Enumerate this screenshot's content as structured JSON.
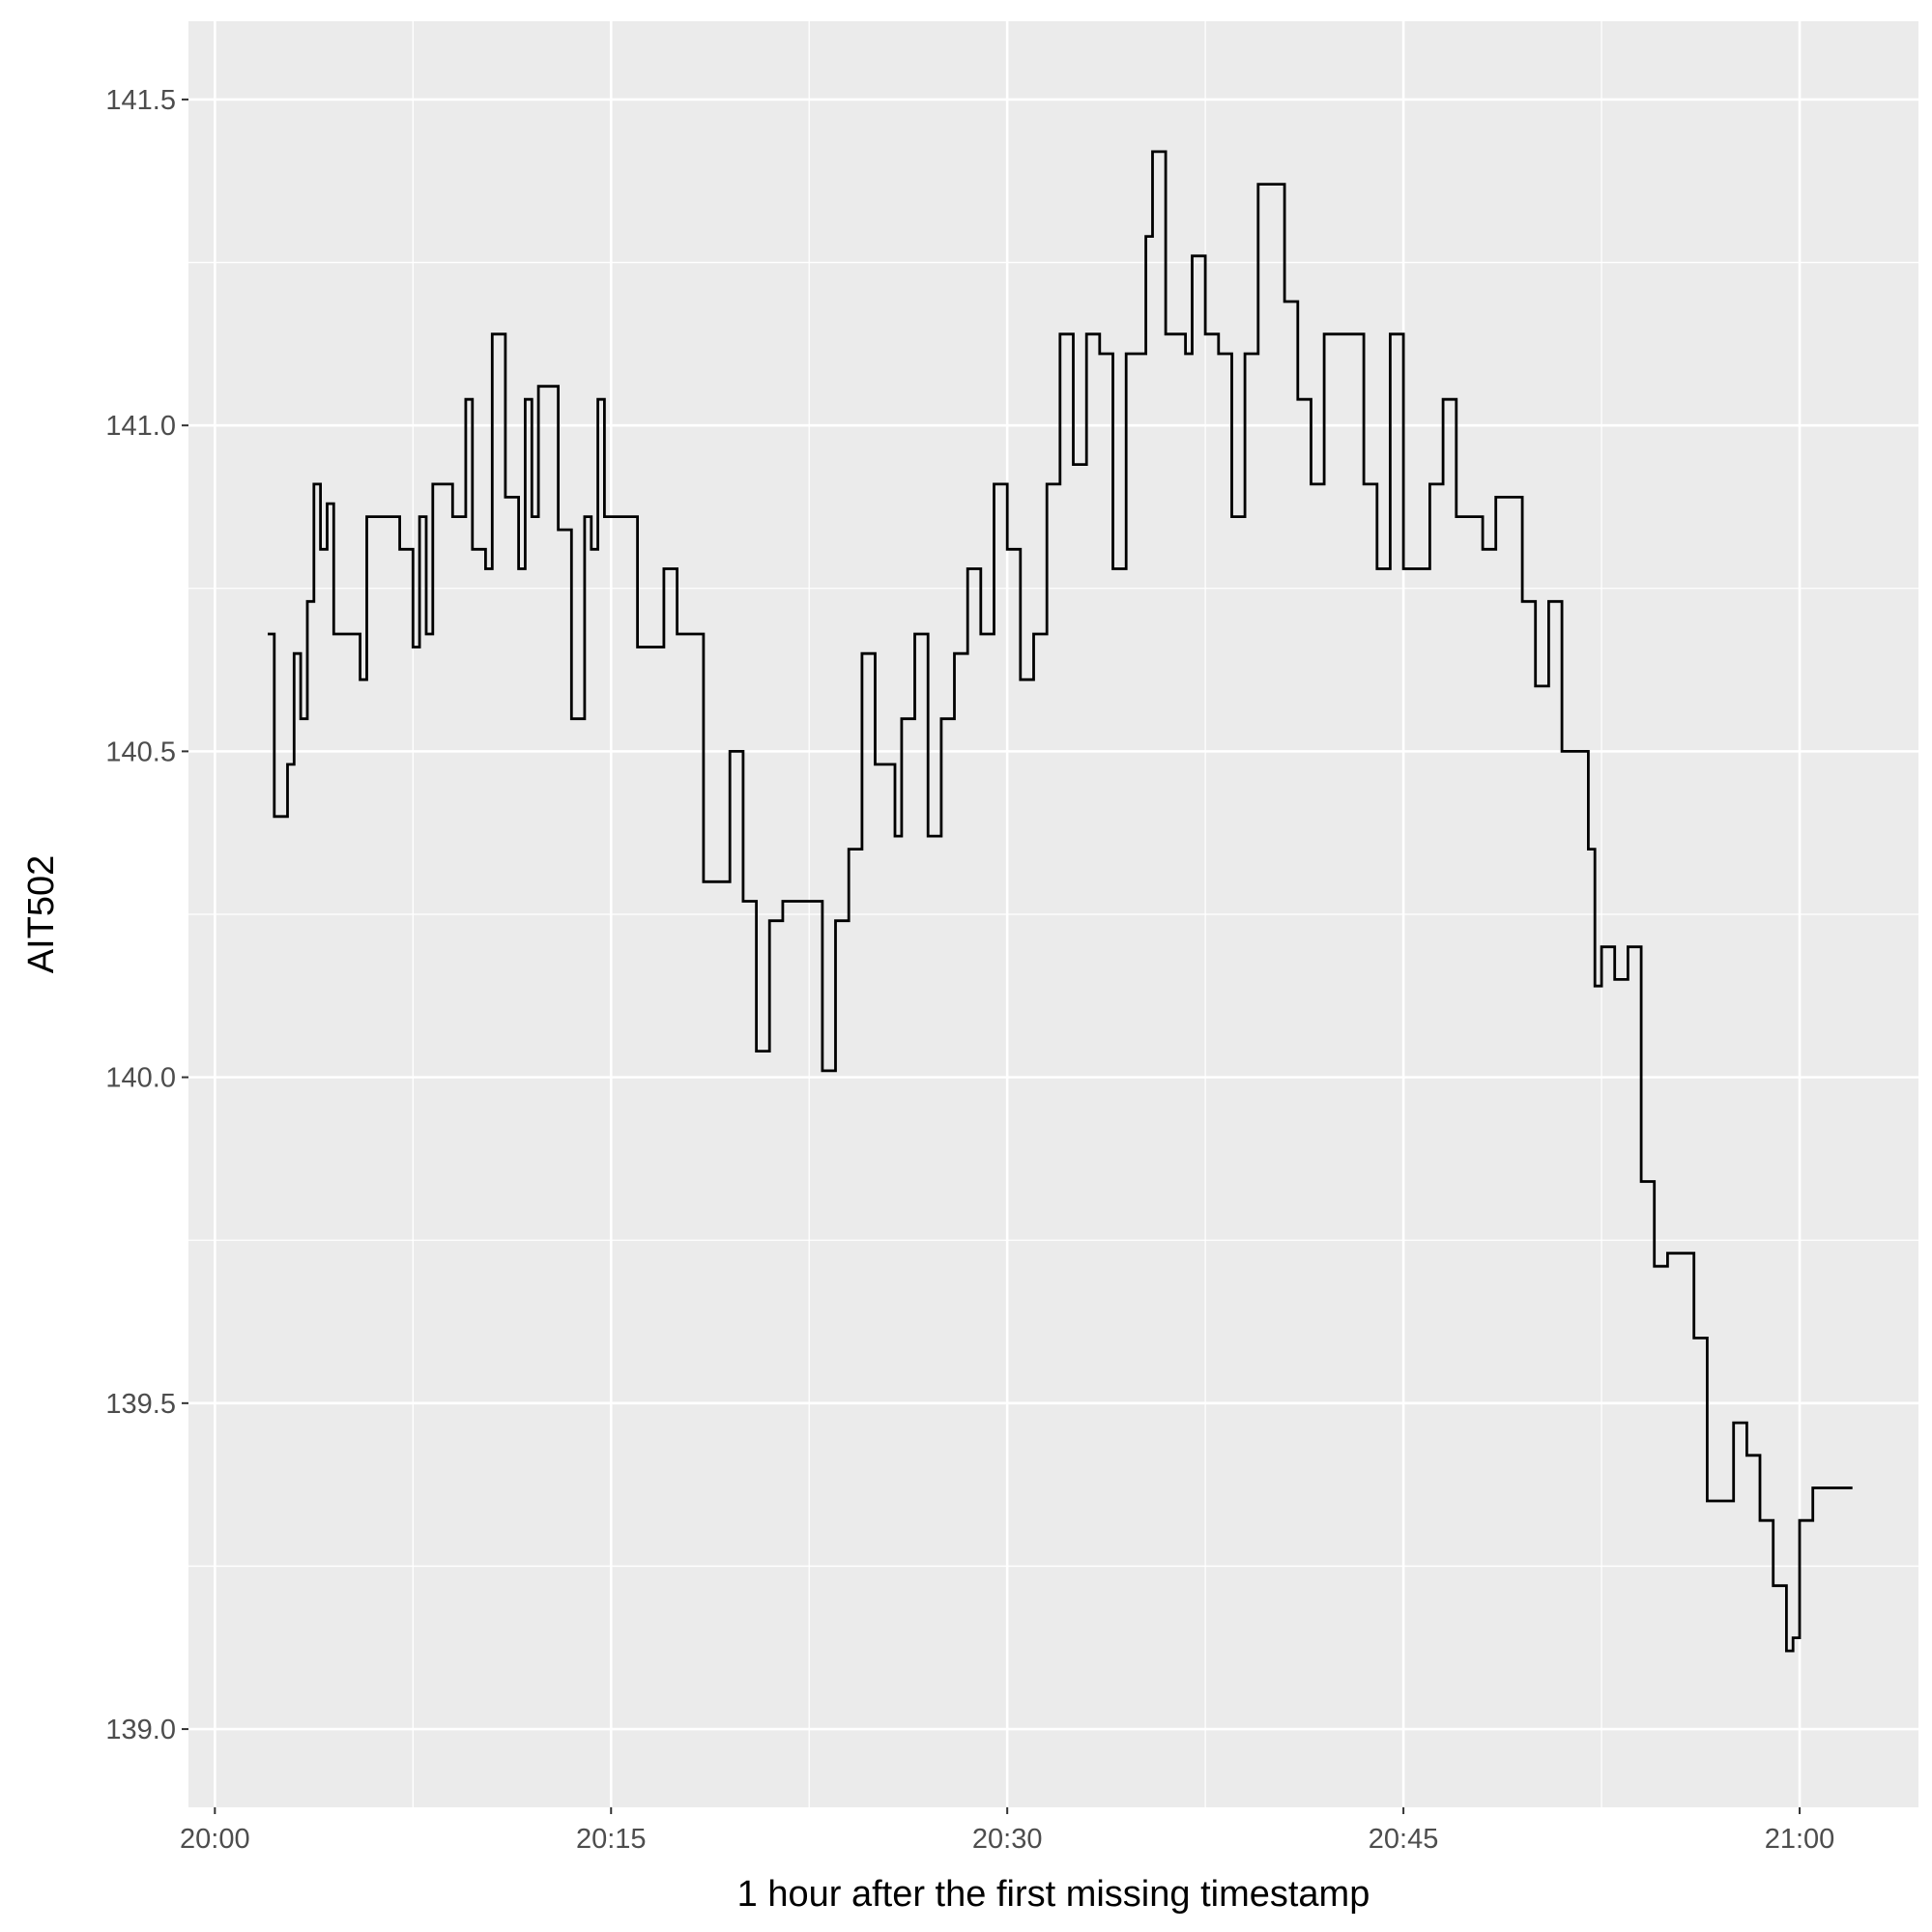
{
  "chart_data": {
    "type": "line",
    "step": true,
    "title": "",
    "xlabel": "1 hour after the first missing timestamp",
    "ylabel": "AIT502",
    "x_unit": "time (HH:MM)",
    "xlim": [
      "19:59:00",
      "21:04:30"
    ],
    "ylim": [
      138.88,
      141.62
    ],
    "x_ticks": [
      "20:00",
      "20:15",
      "20:30",
      "20:45",
      "21:00"
    ],
    "y_ticks": [
      "139.0",
      "139.5",
      "140.0",
      "140.5",
      "141.0",
      "141.5"
    ],
    "grid": true,
    "legend": "none",
    "colors": {
      "panel": "#ebebeb",
      "grid": "#ffffff",
      "line": "#000000",
      "tick_text": "#4d4d4d",
      "title_text": "#000000"
    },
    "series": [
      {
        "x": [
          "20:02:00",
          "20:02:15",
          "20:02:45",
          "20:03:00",
          "20:03:15",
          "20:03:30",
          "20:03:45",
          "20:04:00",
          "20:04:15",
          "20:04:30",
          "20:05:00",
          "20:05:30",
          "20:05:45",
          "20:06:00",
          "20:07:00",
          "20:07:30",
          "20:07:45",
          "20:08:00",
          "20:08:15",
          "20:08:30",
          "20:09:00",
          "20:09:30",
          "20:09:45",
          "20:10:00",
          "20:10:15",
          "20:10:30",
          "20:11:00",
          "20:11:30",
          "20:11:45",
          "20:12:00",
          "20:12:15",
          "20:12:30",
          "20:13:00",
          "20:13:30",
          "20:14:00",
          "20:14:15",
          "20:14:30",
          "20:14:45",
          "20:15:00",
          "20:16:00",
          "20:16:30",
          "20:17:00",
          "20:17:30",
          "20:18:00",
          "20:18:30",
          "20:19:00",
          "20:19:30",
          "20:20:00",
          "20:20:30",
          "20:21:00",
          "20:21:30",
          "20:22:00",
          "20:22:30",
          "20:23:00",
          "20:23:30",
          "20:24:00",
          "20:24:30",
          "20:25:00",
          "20:25:30",
          "20:25:45",
          "20:26:00",
          "20:26:30",
          "20:27:00",
          "20:27:30",
          "20:28:00",
          "20:28:30",
          "20:29:00",
          "20:29:30",
          "20:30:00",
          "20:30:30",
          "20:31:00",
          "20:31:30",
          "20:32:00",
          "20:32:30",
          "20:33:00",
          "20:33:30",
          "20:34:00",
          "20:34:30",
          "20:35:00",
          "20:35:15",
          "20:35:30",
          "20:36:00",
          "20:36:30",
          "20:36:45",
          "20:37:00",
          "20:37:30",
          "20:38:00",
          "20:38:30",
          "20:39:00",
          "20:39:30",
          "20:40:00",
          "20:40:30",
          "20:41:00",
          "20:41:30",
          "20:42:00",
          "20:43:00",
          "20:43:30",
          "20:44:00",
          "20:44:30",
          "20:45:00",
          "20:45:30",
          "20:46:00",
          "20:46:30",
          "20:47:00",
          "20:47:30",
          "20:48:00",
          "20:48:30",
          "20:49:00",
          "20:49:30",
          "20:50:00",
          "20:50:30",
          "20:51:00",
          "20:51:30",
          "20:52:00",
          "20:52:15",
          "20:52:30",
          "20:53:00",
          "20:53:30",
          "20:54:00",
          "20:54:30",
          "20:55:00",
          "20:55:30",
          "20:56:00",
          "20:56:30",
          "20:57:00",
          "20:57:30",
          "20:58:00",
          "20:58:30",
          "20:59:00",
          "20:59:30",
          "20:59:45",
          "21:00:00",
          "21:00:30",
          "21:02:00"
        ],
        "y": [
          140.68,
          140.4,
          140.48,
          140.65,
          140.55,
          140.73,
          140.91,
          140.81,
          140.88,
          140.68,
          140.68,
          140.61,
          140.86,
          140.86,
          140.81,
          140.66,
          140.86,
          140.68,
          140.91,
          140.91,
          140.86,
          141.04,
          140.81,
          140.81,
          140.78,
          141.14,
          140.89,
          140.78,
          141.04,
          140.86,
          141.06,
          141.06,
          140.84,
          140.55,
          140.86,
          140.81,
          141.04,
          140.86,
          140.86,
          140.66,
          140.66,
          140.78,
          140.68,
          140.68,
          140.3,
          140.3,
          140.5,
          140.27,
          140.04,
          140.24,
          140.27,
          140.27,
          140.27,
          140.01,
          140.24,
          140.35,
          140.65,
          140.48,
          140.48,
          140.37,
          140.55,
          140.68,
          140.37,
          140.55,
          140.65,
          140.78,
          140.68,
          140.91,
          140.81,
          140.61,
          140.68,
          140.91,
          141.14,
          140.94,
          141.14,
          141.11,
          140.78,
          141.11,
          141.11,
          141.29,
          141.42,
          141.14,
          141.14,
          141.11,
          141.26,
          141.14,
          141.11,
          140.86,
          141.11,
          141.37,
          141.37,
          141.19,
          141.04,
          140.91,
          141.14,
          141.14,
          140.91,
          140.78,
          141.14,
          140.78,
          140.78,
          140.91,
          141.04,
          140.86,
          140.86,
          140.81,
          140.89,
          140.89,
          140.73,
          140.6,
          140.73,
          140.5,
          140.5,
          140.35,
          140.14,
          140.2,
          140.15,
          140.2,
          139.84,
          139.71,
          139.73,
          139.73,
          139.6,
          139.35,
          139.35,
          139.47,
          139.42,
          139.32,
          139.22,
          139.12,
          139.14,
          139.32,
          139.37,
          139.37
        ]
      }
    ]
  }
}
